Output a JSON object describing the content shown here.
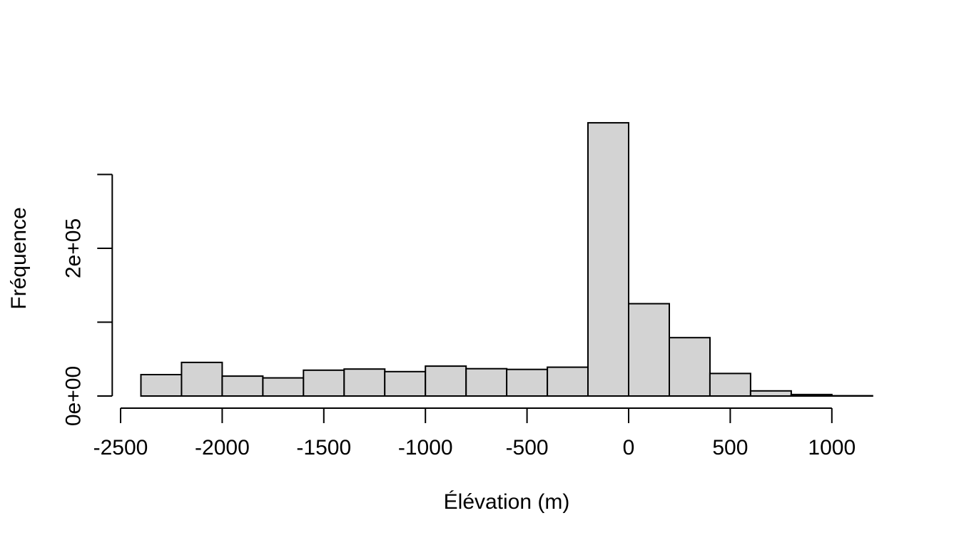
{
  "figure": {
    "background": "#ffffff",
    "xlab": "Élévation (m)",
    "ylab": "Fréquence"
  },
  "chart_data": {
    "type": "bar",
    "subtype": "histogram",
    "title": "",
    "xlabel": "Élévation (m)",
    "ylabel": "Fréquence",
    "grid": false,
    "legend": null,
    "bin_width": 200,
    "bin_edges": [
      -2400,
      -2200,
      -2000,
      -1800,
      -1600,
      -1400,
      -1200,
      -1000,
      -800,
      -600,
      -400,
      -200,
      0,
      200,
      400,
      600,
      800,
      1000,
      1200
    ],
    "values": [
      29000,
      45500,
      27000,
      24500,
      35000,
      36500,
      33000,
      40500,
      37000,
      36000,
      39000,
      370000,
      125000,
      79000,
      30500,
      7000,
      2000,
      200
    ],
    "x_ticks": [
      {
        "value": -2500,
        "label": "-2500"
      },
      {
        "value": -2000,
        "label": "-2000"
      },
      {
        "value": -1500,
        "label": "-1500"
      },
      {
        "value": -1000,
        "label": "-1000"
      },
      {
        "value": -500,
        "label": "-500"
      },
      {
        "value": 0,
        "label": "0"
      },
      {
        "value": 500,
        "label": "500"
      },
      {
        "value": 1000,
        "label": "1000"
      }
    ],
    "y_ticks": [
      {
        "value": 0,
        "label": "0e+00"
      },
      {
        "value": 100000,
        "label": ""
      },
      {
        "value": 200000,
        "label": "2e+05"
      },
      {
        "value": 300000,
        "label": ""
      }
    ],
    "xlim": [
      -2500,
      1000
    ],
    "ylim": [
      0,
      300000
    ],
    "bar_fill": "#d3d3d3",
    "bar_stroke": "#000000",
    "axis_color": "#000000"
  }
}
